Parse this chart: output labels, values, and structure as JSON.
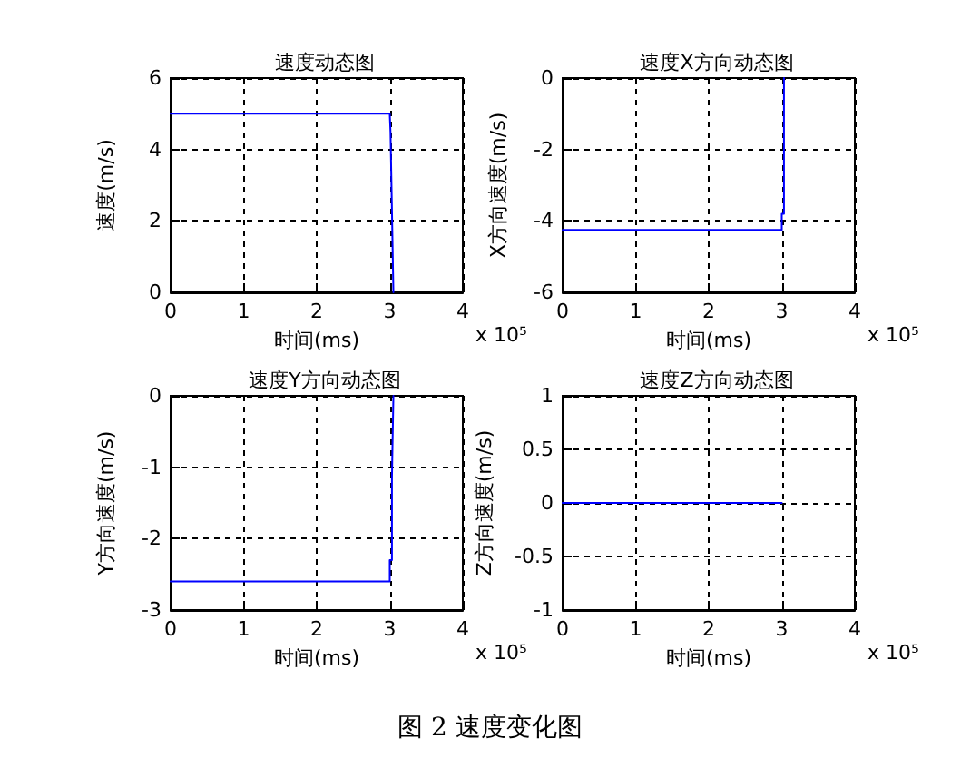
{
  "chart_data": [
    {
      "type": "line",
      "title": "速度动态图",
      "xlabel": "时间(ms)",
      "ylabel": "速度(m/s)",
      "x": [
        0,
        3,
        3.01,
        3.03,
        3.05
      ],
      "series": [
        {
          "color": "#0000ff",
          "values": [
            5,
            5,
            4.5,
            2.3,
            0
          ]
        }
      ],
      "xlim": [
        0,
        4
      ],
      "xticks": [
        0,
        1,
        2,
        3,
        4
      ],
      "ylim": [
        0,
        6
      ],
      "yticks": [
        0,
        2,
        4,
        6
      ],
      "grid": true,
      "annotations": [
        "x 10⁵"
      ]
    },
    {
      "type": "line",
      "title": "速度X方向动态图",
      "xlabel": "时间(ms)",
      "ylabel": "X方向速度(m/s)",
      "x": [
        0,
        3,
        3,
        3.03,
        3.03
      ],
      "series": [
        {
          "color": "#0000ff",
          "values": [
            -4.25,
            -4.25,
            -3.8,
            -3.8,
            0
          ]
        }
      ],
      "xlim": [
        0,
        4
      ],
      "xticks": [
        0,
        1,
        2,
        3,
        4
      ],
      "ylim": [
        -6,
        0
      ],
      "yticks": [
        -6,
        -4,
        -2,
        0
      ],
      "grid": true,
      "annotations": [
        "x 10⁵"
      ]
    },
    {
      "type": "line",
      "title": "速度Y方向动态图",
      "xlabel": "时间(ms)",
      "ylabel": "Y方向速度(m/s)",
      "x": [
        0,
        3,
        3,
        3.03,
        3.03,
        3.05
      ],
      "series": [
        {
          "color": "#0000ff",
          "values": [
            -2.6,
            -2.6,
            -2.3,
            -2.3,
            -1.15,
            0
          ]
        }
      ],
      "xlim": [
        0,
        4
      ],
      "xticks": [
        0,
        1,
        2,
        3,
        4
      ],
      "ylim": [
        -3,
        0
      ],
      "yticks": [
        -3,
        -2,
        -1,
        0
      ],
      "grid": true,
      "annotations": [
        "x 10⁵"
      ]
    },
    {
      "type": "line",
      "title": "速度Z方向动态图",
      "xlabel": "时间(ms)",
      "ylabel": "Z方向速度(m/s)",
      "x": [
        0,
        3
      ],
      "series": [
        {
          "color": "#0000ff",
          "values": [
            0,
            0
          ]
        }
      ],
      "xlim": [
        0,
        4
      ],
      "xticks": [
        0,
        1,
        2,
        3,
        4
      ],
      "ylim": [
        -1,
        1
      ],
      "yticks": [
        -1,
        -0.5,
        0,
        0.5,
        1
      ],
      "grid": true,
      "annotations": [
        "x 10⁵",
        "图 2 速度变化图"
      ]
    }
  ]
}
